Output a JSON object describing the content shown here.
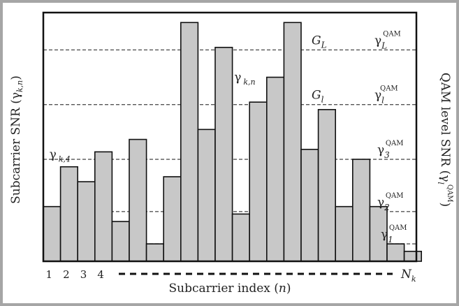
{
  "chart_data": {
    "type": "bar",
    "xlabel": "Subcarrier index (n)",
    "ylabel_left": "Subcarrier SNR (γk,n)",
    "ylabel_right": "QAM level SNR (γlQAM)",
    "tick_labels": [
      "1",
      "2",
      "3",
      "4"
    ],
    "last_tick_label": "Nk",
    "values": [
      0.22,
      0.38,
      0.32,
      0.44,
      0.16,
      0.49,
      0.07,
      0.34,
      0.96,
      0.53,
      0.86,
      0.19,
      0.64,
      0.74,
      0.96,
      0.45,
      0.61,
      0.22,
      0.41,
      0.22,
      0.07,
      0.04
    ],
    "bar_color": "#c8c8c8",
    "ylim": [
      0,
      1
    ],
    "thresholds": [
      {
        "level": 0.85,
        "g_base": "G",
        "g_sub": "L",
        "q_base": "γ",
        "q_sub": "L",
        "q_sup": "QAM"
      },
      {
        "level": 0.63,
        "g_base": "G",
        "g_sub": "l",
        "q_base": "γ",
        "q_sub": "l",
        "q_sup": "QAM"
      },
      {
        "level": 0.41,
        "g_base": "",
        "g_sub": "",
        "q_base": "γ",
        "q_sub": "3",
        "q_sup": "QAM"
      },
      {
        "level": 0.2,
        "g_base": "",
        "g_sub": "",
        "q_base": "γ",
        "q_sub": "2",
        "q_sup": "QAM"
      },
      {
        "level": 0.07,
        "g_base": "",
        "g_sub": "",
        "q_base": "γ",
        "q_sub": "1",
        "q_sup": "QAM"
      }
    ],
    "annotations": [
      {
        "bar": 1,
        "base": "γ",
        "sub": "k,4"
      },
      {
        "bar": 12,
        "base": "γ",
        "sub": "k,n"
      }
    ]
  },
  "frame_color": "#a6a6a6"
}
